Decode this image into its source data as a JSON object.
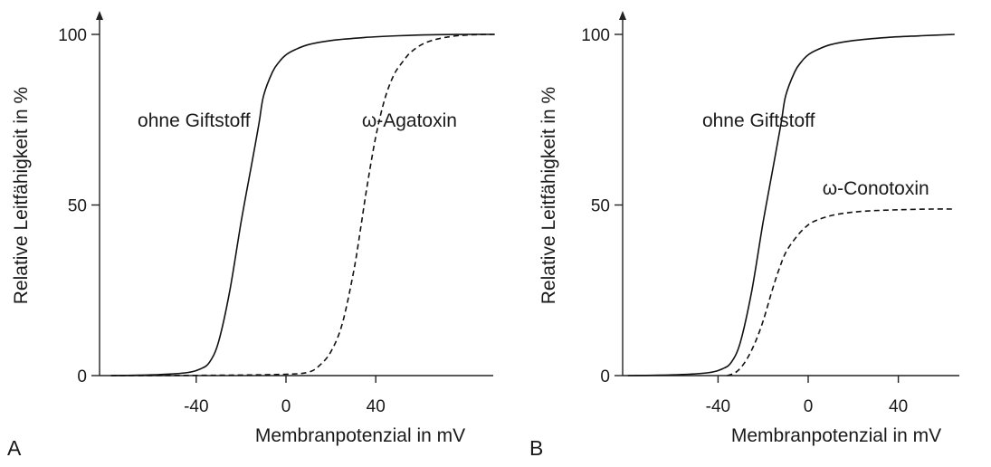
{
  "chart_data": [
    {
      "type": "line",
      "panel_label": "A",
      "xlabel": "Membranpotenzial in mV",
      "ylabel": "Relative Leitfähigkeit in %",
      "xlim": [
        -80,
        95
      ],
      "ylim": [
        0,
        105
      ],
      "xticks": [
        -40,
        0,
        40
      ],
      "xtick_labels": [
        "-40",
        "0",
        "40"
      ],
      "yticks": [
        0,
        50,
        100
      ],
      "ytick_labels": [
        "0",
        "50",
        "100"
      ],
      "series": [
        {
          "name": "ohne Giftstoff",
          "style": "solid",
          "x": [
            -78,
            -60,
            -45,
            -38,
            -34,
            -30,
            -25,
            -20,
            -15,
            -12,
            -10,
            -6,
            -3,
            0,
            4,
            10,
            20,
            35,
            50,
            65,
            80,
            93
          ],
          "y": [
            0,
            0.2,
            0.8,
            2,
            4,
            10,
            25,
            45,
            63,
            74,
            82,
            89,
            92,
            94,
            95.5,
            97,
            98.2,
            99.1,
            99.6,
            99.9,
            100,
            100
          ]
        },
        {
          "name": "ω-Agatoxin",
          "style": "dashed",
          "x": [
            -78,
            -30,
            0,
            10,
            15,
            20,
            25,
            30,
            33,
            36,
            40,
            44,
            48,
            52,
            56,
            62,
            70,
            80,
            93
          ],
          "y": [
            0,
            0.1,
            0.4,
            1,
            3,
            7,
            15,
            30,
            42,
            55,
            70,
            81,
            88,
            92,
            95,
            97.5,
            99,
            99.8,
            100
          ]
        }
      ],
      "annotations": [
        {
          "text": "ohne Giftstoff",
          "x": -41,
          "y": 73
        },
        {
          "text": "ω-Agatoxin",
          "x": 55,
          "y": 73
        }
      ]
    },
    {
      "type": "line",
      "panel_label": "B",
      "xlabel": "Membranpotenzial in mV",
      "ylabel": "Relative Leitfähigkeit in %",
      "xlim": [
        -80,
        65
      ],
      "ylim": [
        0,
        105
      ],
      "xticks": [
        -40,
        0,
        40
      ],
      "xtick_labels": [
        "-40",
        "0",
        "40"
      ],
      "yticks": [
        0,
        50,
        100
      ],
      "ytick_labels": [
        "0",
        "50",
        "100"
      ],
      "series": [
        {
          "name": "ohne Giftstoff",
          "style": "solid",
          "x": [
            -80,
            -60,
            -45,
            -38,
            -34,
            -30,
            -25,
            -20,
            -15,
            -12,
            -10,
            -6,
            -3,
            0,
            4,
            10,
            20,
            35,
            50,
            65
          ],
          "y": [
            0,
            0.2,
            0.8,
            2,
            4,
            10,
            25,
            45,
            63,
            74,
            82,
            89,
            92,
            94,
            95.5,
            97,
            98.2,
            99.1,
            99.6,
            100
          ]
        },
        {
          "name": "ω-Conotoxin",
          "style": "dashed",
          "x": [
            -36,
            -32,
            -28,
            -24,
            -20,
            -16,
            -13,
            -10,
            -6,
            -2,
            2,
            8,
            15,
            25,
            40,
            55,
            65
          ],
          "y": [
            0,
            1,
            4,
            9,
            16,
            25,
            31,
            36,
            40,
            43,
            45,
            46.5,
            47.5,
            48.2,
            48.6,
            48.8,
            48.8
          ]
        }
      ],
      "annotations": [
        {
          "text": "ohne Giftstoff",
          "x": -22,
          "y": 73
        },
        {
          "text": "ω-Conotoxin",
          "x": 30,
          "y": 53
        }
      ]
    }
  ]
}
